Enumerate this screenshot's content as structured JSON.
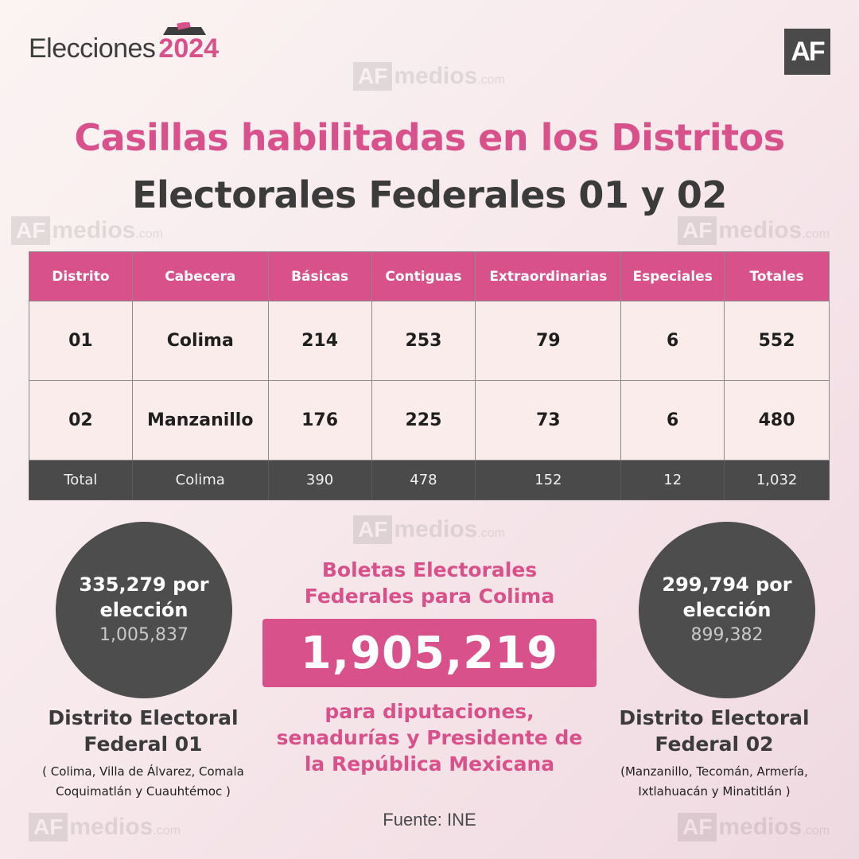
{
  "brand": {
    "word": "Elecciones",
    "year": "2024"
  },
  "logo_text": "AF",
  "watermark": {
    "box": "AF",
    "text": "medios",
    "suffix": ".com"
  },
  "title": {
    "line1": "Casillas habilitadas en los Distritos",
    "line2": "Electorales Federales 01 y 02"
  },
  "table": {
    "headers": [
      "Distrito",
      "Cabecera",
      "Básicas",
      "Contiguas",
      "Extraordinarias",
      "Especiales",
      "Totales"
    ],
    "rows": [
      [
        "01",
        "Colima",
        "214",
        "253",
        "79",
        "6",
        "552"
      ],
      [
        "02",
        "Manzanillo",
        "176",
        "225",
        "73",
        "6",
        "480"
      ]
    ],
    "total": [
      "Total",
      "Colima",
      "390",
      "478",
      "152",
      "12",
      "1,032"
    ]
  },
  "district1": {
    "per_election_line1": "335,279 por",
    "per_election_line2": "elección",
    "total": "1,005,837",
    "title_line1": "Distrito Electoral",
    "title_line2": "Federal 01",
    "municipalities_line1": "( Colima, Villa de Álvarez, Comala",
    "municipalities_line2": "Coquimatlán y Cuauhtémoc )"
  },
  "district2": {
    "per_election_line1": "299,794 por",
    "per_election_line2": "elección",
    "total": "899,382",
    "title_line1": "Distrito Electoral",
    "title_line2": "Federal 02",
    "municipalities_line1": "(Manzanillo, Tecomán, Armería,",
    "municipalities_line2": "Ixtlahuacán y Minatitlán )"
  },
  "boletas": {
    "title_line1": "Boletas Electorales",
    "title_line2": "Federales para Colima",
    "value": "1,905,219",
    "sub_line1": "para diputaciones,",
    "sub_line2": "senadurías y  Presidente de",
    "sub_line3": "la República Mexicana"
  },
  "source": "Fuente: INE",
  "colors": {
    "accent": "#d9518b",
    "dark": "#4a4a4a",
    "cell_bg": "#f9eceb"
  }
}
